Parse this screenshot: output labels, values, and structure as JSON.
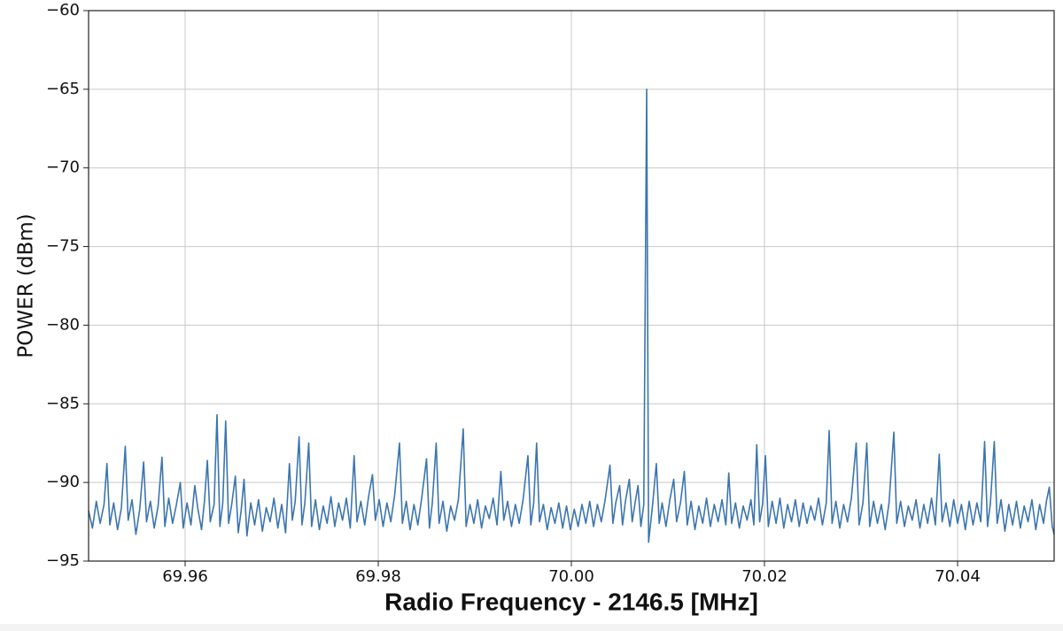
{
  "chart_data": {
    "type": "line",
    "xlabel": "Radio Frequency - 2146.5 [MHz]",
    "ylabel": "POWER (dBm)",
    "xlim": [
      69.95,
      70.05
    ],
    "ylim": [
      -95,
      -60
    ],
    "xticks": [
      69.96,
      69.98,
      {
        "value": 70,
        "label": "70.00"
      },
      70.02,
      70.04
    ],
    "yticks": [
      {
        "value": -95,
        "label": "−95"
      },
      {
        "value": -90,
        "label": "−90"
      },
      {
        "value": -85,
        "label": "−85"
      },
      {
        "value": -80,
        "label": "−80"
      },
      {
        "value": -75,
        "label": "−75"
      },
      {
        "value": -70,
        "label": "−70"
      },
      {
        "value": -65,
        "label": "−65"
      },
      {
        "value": -60,
        "label": "−60"
      }
    ],
    "grid": true,
    "color": "#3b75af",
    "x": [
      69.95,
      69.9504,
      69.9508,
      69.9512,
      69.9516,
      69.9519,
      69.9522,
      69.9526,
      69.953,
      69.9534,
      69.9538,
      69.9541,
      69.9545,
      69.9549,
      69.9553,
      69.9557,
      69.956,
      69.9564,
      69.9568,
      69.9572,
      69.9576,
      69.9579,
      69.9583,
      69.9587,
      69.9591,
      69.9595,
      69.9598,
      69.9602,
      69.9606,
      69.961,
      69.9613,
      69.9617,
      69.962,
      69.9623,
      69.9626,
      69.963,
      69.9633,
      69.9636,
      69.9639,
      69.9642,
      69.9645,
      69.9648,
      69.9652,
      69.9655,
      69.9658,
      69.9661,
      69.9664,
      69.9668,
      69.9672,
      69.9676,
      69.968,
      69.9684,
      69.9688,
      69.9692,
      69.9696,
      69.97,
      69.9704,
      69.9708,
      69.9711,
      69.9714,
      69.9718,
      69.9721,
      69.9724,
      69.9728,
      69.9731,
      69.9735,
      69.9739,
      69.9743,
      69.9747,
      69.9751,
      69.9755,
      69.9759,
      69.9763,
      69.9767,
      69.9771,
      69.9775,
      69.9778,
      69.9782,
      69.9786,
      69.979,
      69.9794,
      69.9797,
      69.9801,
      69.9805,
      69.9809,
      69.9813,
      69.9817,
      69.9822,
      69.9825,
      69.9829,
      69.9833,
      69.9837,
      69.9841,
      69.9845,
      69.985,
      69.9853,
      69.9856,
      69.986,
      69.9863,
      69.9867,
      69.9871,
      69.9875,
      69.9879,
      69.9883,
      69.9888,
      69.9891,
      69.9895,
      69.9899,
      69.9903,
      69.9907,
      69.9911,
      69.9915,
      69.9919,
      69.9923,
      69.9927,
      69.993,
      69.9934,
      69.9938,
      69.9942,
      69.9946,
      69.995,
      69.9955,
      69.9958,
      69.9961,
      69.9964,
      69.9967,
      69.9971,
      69.9975,
      69.9979,
      69.9983,
      69.9987,
      69.9991,
      69.9995,
      69.9999,
      70.0003,
      70.0007,
      70.0011,
      70.0015,
      70.0019,
      70.0023,
      70.0027,
      70.0031,
      70.0035,
      70.004,
      70.0043,
      70.0046,
      70.005,
      70.0053,
      70.0056,
      70.006,
      70.0063,
      70.0066,
      70.0069,
      70.0072,
      70.0075,
      70.0078,
      70.008,
      70.0084,
      70.0088,
      70.0091,
      70.0094,
      70.0098,
      70.0102,
      70.0106,
      70.0109,
      70.0113,
      70.0117,
      70.012,
      70.0124,
      70.0128,
      70.0132,
      70.0136,
      70.014,
      70.0144,
      70.0148,
      70.0152,
      70.0156,
      70.016,
      70.0163,
      70.0166,
      70.017,
      70.0174,
      70.0178,
      70.0182,
      70.0186,
      70.0189,
      70.0192,
      70.0195,
      70.0198,
      70.0201,
      70.0204,
      70.0208,
      70.0212,
      70.0216,
      70.022,
      70.0224,
      70.0228,
      70.0232,
      70.0236,
      70.024,
      70.0244,
      70.0248,
      70.0252,
      70.0256,
      70.026,
      70.0264,
      70.0267,
      70.027,
      70.0274,
      70.0278,
      70.0282,
      70.0286,
      70.029,
      70.0295,
      70.0298,
      70.0302,
      70.0306,
      70.0309,
      70.0313,
      70.0317,
      70.0321,
      70.0325,
      70.0329,
      70.0334,
      70.0337,
      70.0341,
      70.0345,
      70.0349,
      70.0353,
      70.0357,
      70.0361,
      70.0365,
      70.0369,
      70.0373,
      70.0377,
      70.0381,
      70.0384,
      70.0388,
      70.0392,
      70.0396,
      70.04,
      70.0404,
      70.0408,
      70.0412,
      70.0416,
      70.042,
      70.0424,
      70.0428,
      70.0431,
      70.0434,
      70.0438,
      70.0441,
      70.0445,
      70.0449,
      70.0453,
      70.0457,
      70.0461,
      70.0465,
      70.0469,
      70.0473,
      70.0477,
      70.0481,
      70.0485,
      70.0489,
      70.0492,
      70.0495,
      70.0498,
      70.05
    ],
    "values": [
      -91.8,
      -92.9,
      -91.2,
      -92.6,
      -91.4,
      -88.8,
      -92.7,
      -91.3,
      -93.0,
      -91.6,
      -87.7,
      -92.4,
      -91.1,
      -93.3,
      -91.7,
      -88.7,
      -92.5,
      -91.2,
      -92.9,
      -91.5,
      -88.4,
      -92.8,
      -91.0,
      -92.6,
      -91.4,
      -90.0,
      -92.9,
      -91.3,
      -92.7,
      -90.2,
      -91.6,
      -93.0,
      -91.2,
      -88.6,
      -92.5,
      -91.4,
      -85.7,
      -92.8,
      -91.3,
      -86.1,
      -92.6,
      -91.5,
      -89.6,
      -93.2,
      -91.8,
      -89.8,
      -93.4,
      -91.3,
      -92.7,
      -91.1,
      -93.1,
      -91.6,
      -92.5,
      -91.0,
      -92.9,
      -91.4,
      -93.2,
      -88.8,
      -92.4,
      -91.2,
      -87.1,
      -92.7,
      -91.3,
      -87.5,
      -92.8,
      -91.1,
      -93.0,
      -91.5,
      -92.6,
      -90.9,
      -92.8,
      -91.3,
      -92.4,
      -91.0,
      -92.9,
      -88.3,
      -92.5,
      -91.2,
      -92.7,
      -90.9,
      -89.5,
      -92.4,
      -91.1,
      -92.8,
      -91.3,
      -92.5,
      -90.8,
      -87.5,
      -92.6,
      -91.2,
      -93.0,
      -91.4,
      -92.7,
      -91.0,
      -88.5,
      -92.9,
      -91.3,
      -87.5,
      -92.6,
      -91.2,
      -93.1,
      -91.5,
      -92.4,
      -91.1,
      -86.6,
      -92.8,
      -91.4,
      -92.6,
      -91.1,
      -92.9,
      -91.5,
      -92.3,
      -91.0,
      -92.7,
      -89.3,
      -92.4,
      -91.2,
      -92.8,
      -91.4,
      -92.6,
      -91.1,
      -88.3,
      -92.7,
      -91.3,
      -87.5,
      -92.5,
      -91.4,
      -93.0,
      -91.6,
      -92.6,
      -91.3,
      -92.9,
      -91.5,
      -93.0,
      -91.7,
      -92.8,
      -91.4,
      -92.6,
      -91.2,
      -92.8,
      -91.4,
      -92.5,
      -91.1,
      -88.9,
      -92.6,
      -91.3,
      -90.2,
      -92.7,
      -91.2,
      -89.8,
      -92.5,
      -91.3,
      -90.2,
      -92.8,
      -91.4,
      -65.0,
      -93.8,
      -91.5,
      -88.8,
      -92.6,
      -91.3,
      -92.8,
      -91.1,
      -89.8,
      -92.5,
      -91.3,
      -89.3,
      -92.7,
      -91.2,
      -93.0,
      -91.5,
      -92.6,
      -91.0,
      -92.8,
      -91.4,
      -92.5,
      -91.1,
      -92.7,
      -89.4,
      -92.6,
      -91.3,
      -92.9,
      -91.5,
      -92.4,
      -91.1,
      -92.7,
      -87.6,
      -92.5,
      -91.4,
      -88.3,
      -92.8,
      -91.2,
      -92.6,
      -91.0,
      -92.9,
      -91.4,
      -92.5,
      -91.1,
      -92.8,
      -91.3,
      -92.6,
      -91.5,
      -92.4,
      -91.0,
      -92.7,
      -91.3,
      -86.7,
      -92.6,
      -91.2,
      -92.9,
      -91.4,
      -92.5,
      -91.0,
      -87.5,
      -92.7,
      -91.3,
      -87.5,
      -92.8,
      -91.2,
      -92.6,
      -91.4,
      -93.0,
      -91.3,
      -86.8,
      -92.6,
      -91.2,
      -92.8,
      -91.5,
      -92.4,
      -91.1,
      -92.9,
      -91.4,
      -92.6,
      -91.0,
      -92.7,
      -88.2,
      -92.5,
      -91.3,
      -92.8,
      -91.1,
      -92.6,
      -91.4,
      -93.0,
      -91.2,
      -92.7,
      -91.3,
      -92.5,
      -87.4,
      -92.8,
      -91.3,
      -87.4,
      -92.6,
      -91.1,
      -93.1,
      -91.4,
      -92.7,
      -91.2,
      -92.9,
      -91.5,
      -92.5,
      -91.1,
      -93.0,
      -91.4,
      -92.6,
      -91.2,
      -90.3,
      -92.8,
      -93.3
    ]
  }
}
